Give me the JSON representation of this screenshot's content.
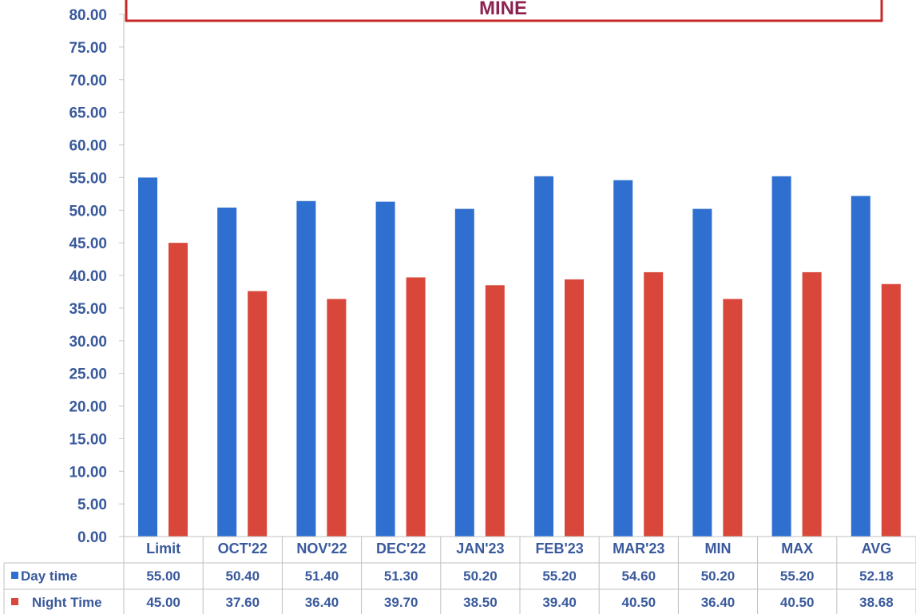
{
  "chart_data": {
    "type": "bar",
    "title": "MINE",
    "ylim": [
      0,
      80
    ],
    "yticks": [
      "0.00",
      "5.00",
      "10.00",
      "15.00",
      "20.00",
      "25.00",
      "30.00",
      "35.00",
      "40.00",
      "45.00",
      "50.00",
      "55.00",
      "60.00",
      "65.00",
      "70.00",
      "75.00",
      "80.00"
    ],
    "categories": [
      "Limit",
      "OCT'22",
      "NOV'22",
      "DEC'22",
      "JAN'23",
      "FEB'23",
      "MAR'23",
      "MIN",
      "MAX",
      "AVG"
    ],
    "series": [
      {
        "name": "Day time",
        "color": "#2e6fd0",
        "values": [
          55.0,
          50.4,
          51.4,
          51.3,
          50.2,
          55.2,
          54.6,
          50.2,
          55.2,
          52.18
        ],
        "labels": [
          "55.00",
          "50.40",
          "51.40",
          "51.30",
          "50.20",
          "55.20",
          "54.60",
          "50.20",
          "55.20",
          "52.18"
        ]
      },
      {
        "name": "Night Time",
        "color": "#d9473a",
        "values": [
          45.0,
          37.6,
          36.4,
          39.7,
          38.5,
          39.4,
          40.5,
          36.4,
          40.5,
          38.68
        ],
        "labels": [
          "45.00",
          "37.60",
          "36.40",
          "39.70",
          "38.50",
          "39.40",
          "40.50",
          "36.40",
          "40.50",
          "38.68"
        ]
      }
    ],
    "grid": false,
    "legend": "data-table-left"
  }
}
